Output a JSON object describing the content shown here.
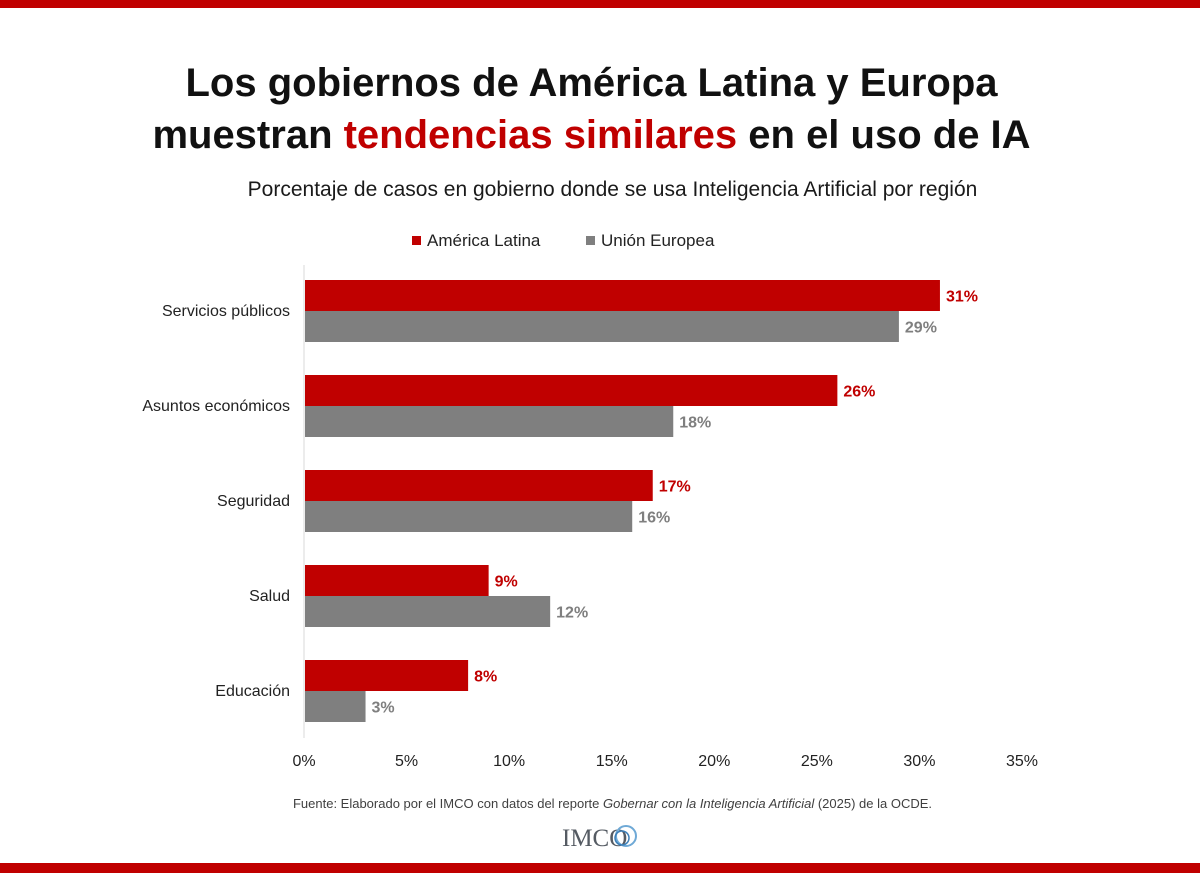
{
  "colors": {
    "accent": "#c00000",
    "gray": "#7f7f7f",
    "axis": "#d9d9d9"
  },
  "header": {
    "title_line1": "Los gobiernos de América Latina y Europa",
    "title_line2_pre": "muestran ",
    "title_line2_highlight": "tendencias similares",
    "title_line2_post": " en el uso de IA"
  },
  "source": {
    "pre": "Fuente: Elaborado por el IMCO con datos del reporte ",
    "italic": "Gobernar con la Inteligencia Artificial",
    "post": " (2025) de la OCDE."
  },
  "logo": {
    "text": "IMCO"
  },
  "chart_data": {
    "type": "bar",
    "orientation": "horizontal",
    "title": "Porcentaje de casos en gobierno donde se usa Inteligencia Artificial por región",
    "categories": [
      "Servicios públicos",
      "Asuntos económicos",
      "Seguridad",
      "Salud",
      "Educación"
    ],
    "series": [
      {
        "name": "América Latina",
        "color": "#c00000",
        "values": [
          31,
          26,
          17,
          9,
          8
        ]
      },
      {
        "name": "Unión Europea",
        "color": "#7f7f7f",
        "values": [
          29,
          18,
          16,
          12,
          3
        ]
      }
    ],
    "xlim": [
      0,
      35
    ],
    "xticks": [
      0,
      5,
      10,
      15,
      20,
      25,
      30,
      35
    ],
    "tick_suffix": "%",
    "label_suffix": "%",
    "legend_position": "top",
    "grid": false
  }
}
